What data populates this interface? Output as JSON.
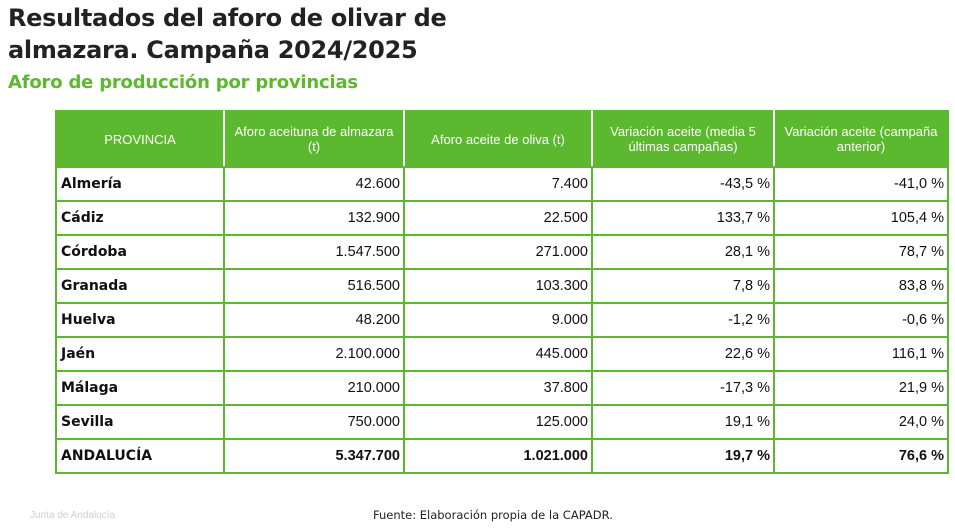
{
  "header": {
    "title_line1": "Resultados del aforo de olivar de",
    "title_line2": "almazara. Campaña 2024/2025",
    "subtitle": "Aforo de producción por provincias"
  },
  "table": {
    "columns": [
      "PROVINCIA",
      "Aforo aceituna de almazara (t)",
      "Aforo aceite de oliva (t)",
      "Variación aceite (media 5 últimas campañas)",
      "Variación aceite (campaña anterior)"
    ],
    "rows": [
      [
        "Almería",
        "42.600",
        "7.400",
        "-43,5 %",
        "-41,0 %"
      ],
      [
        "Cádiz",
        "132.900",
        "22.500",
        "133,7 %",
        "105,4 %"
      ],
      [
        "Córdoba",
        "1.547.500",
        "271.000",
        "28,1 %",
        "78,7 %"
      ],
      [
        "Granada",
        "516.500",
        "103.300",
        "7,8 %",
        "83,8 %"
      ],
      [
        "Huelva",
        "48.200",
        "9.000",
        "-1,2 %",
        "-0,6 %"
      ],
      [
        "Jaén",
        "2.100.000",
        "445.000",
        "22,6 %",
        "116,1 %"
      ],
      [
        "Málaga",
        "210.000",
        "37.800",
        "-17,3 %",
        "21,9 %"
      ],
      [
        "Sevilla",
        "750.000",
        "125.000",
        "19,1 %",
        "24,0 %"
      ]
    ],
    "total": [
      "ANDALUCÍA",
      "5.347.700",
      "1.021.000",
      "19,7 %",
      "76,6 %"
    ]
  },
  "footer": {
    "watermark": "Junta de Andalucía",
    "source": "Fuente: Elaboración propia de la CAPADR."
  },
  "colors": {
    "accent_green": "#5cb82e",
    "header_text": "#ffffff",
    "title_text": "#222222"
  }
}
